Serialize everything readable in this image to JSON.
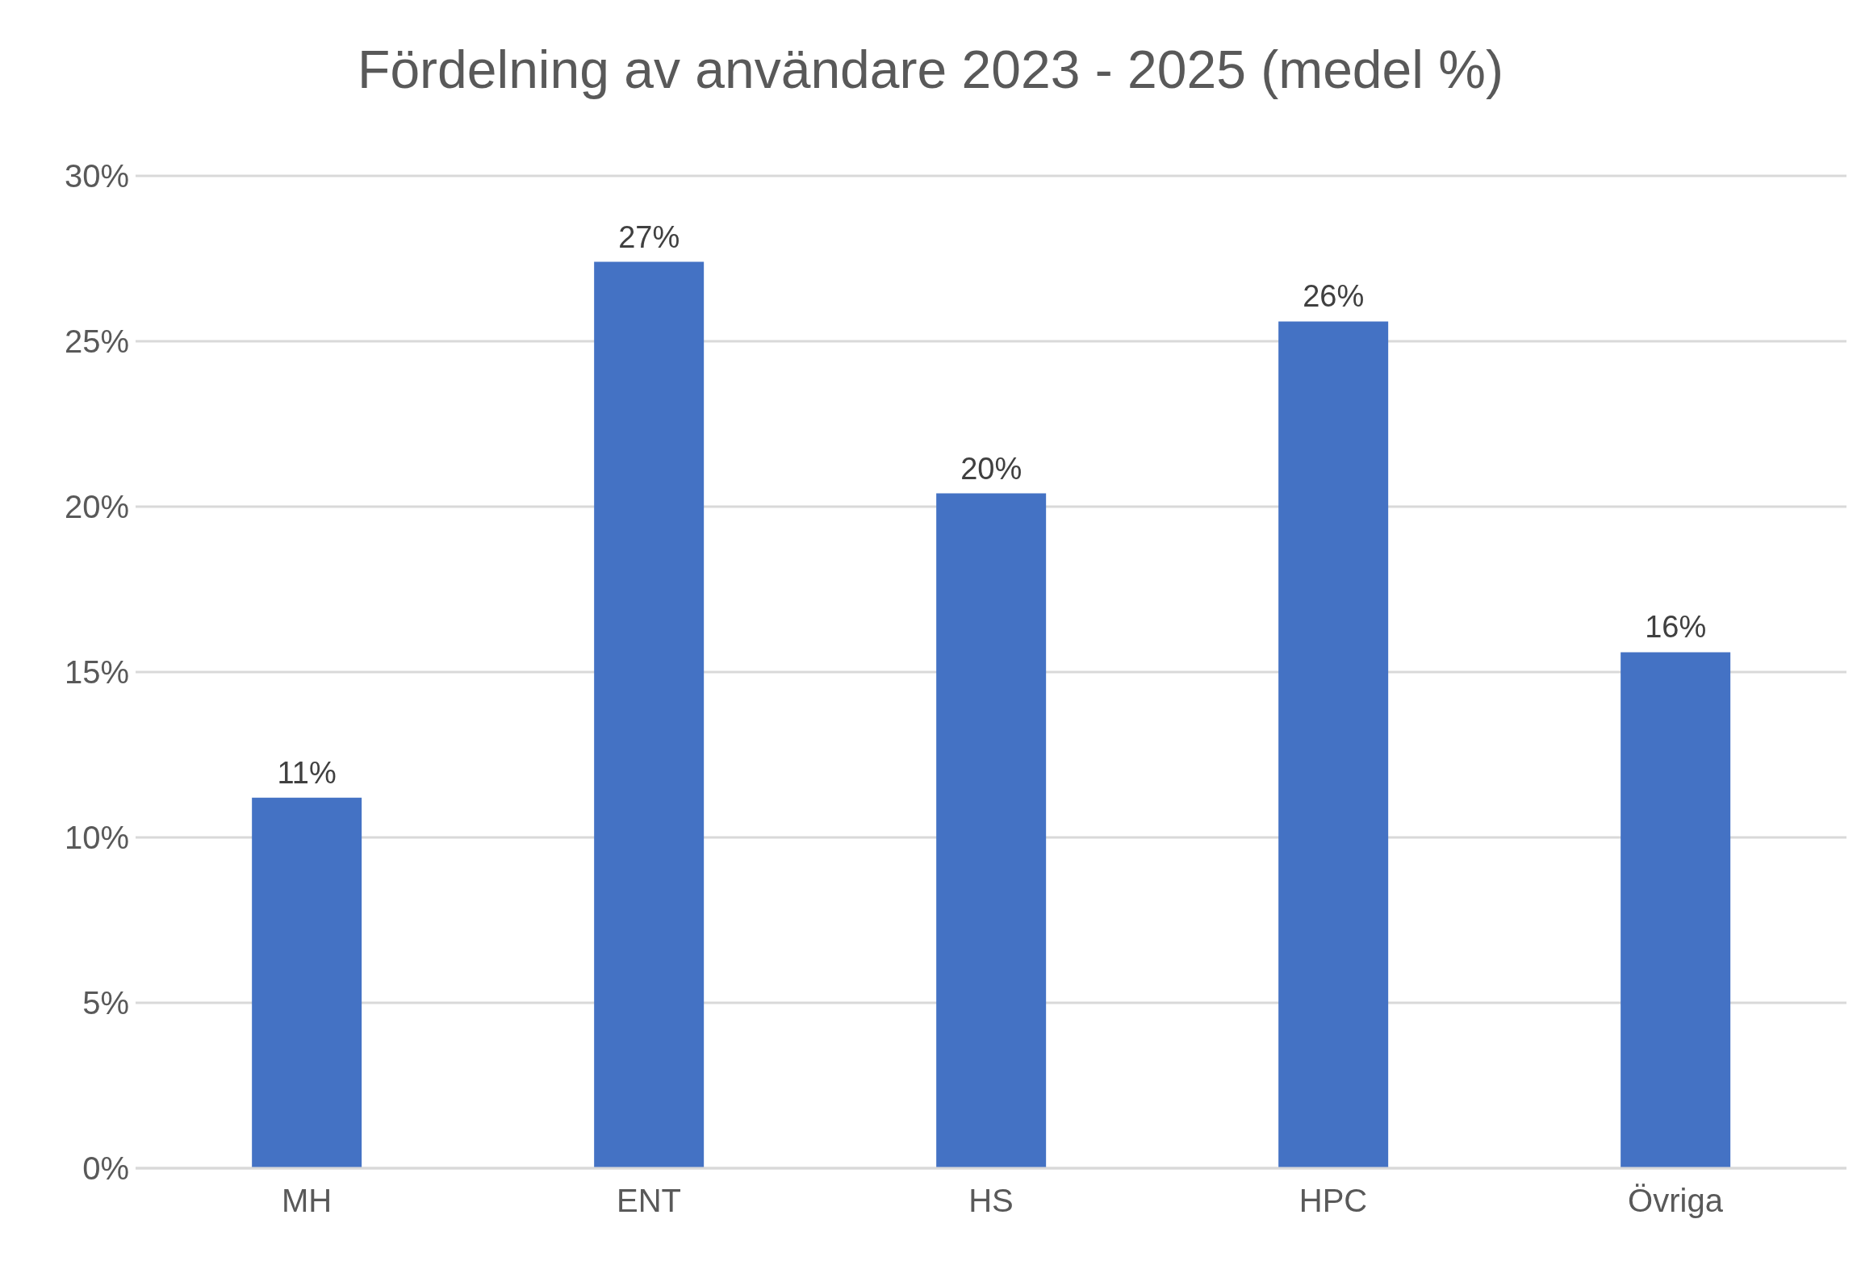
{
  "chart_data": {
    "type": "bar",
    "title": "Fördelning av användare 2023 - 2025 (medel %)",
    "categories": [
      "MH",
      "ENT",
      "HS",
      "HPC",
      "Övriga"
    ],
    "values": [
      11.2,
      27.4,
      20.4,
      25.6,
      15.6
    ],
    "value_labels": [
      "11%",
      "27%",
      "20%",
      "26%",
      "16%"
    ],
    "color": "#4472c4",
    "ylim": [
      0,
      30
    ],
    "yticks": [
      {
        "value": 0,
        "label": "0%"
      },
      {
        "value": 5,
        "label": "5%"
      },
      {
        "value": 10,
        "label": "10%"
      },
      {
        "value": 15,
        "label": "15%"
      },
      {
        "value": 20,
        "label": "20%"
      },
      {
        "value": 25,
        "label": "25%"
      },
      {
        "value": 30,
        "label": "30%"
      }
    ],
    "grid": "y"
  }
}
